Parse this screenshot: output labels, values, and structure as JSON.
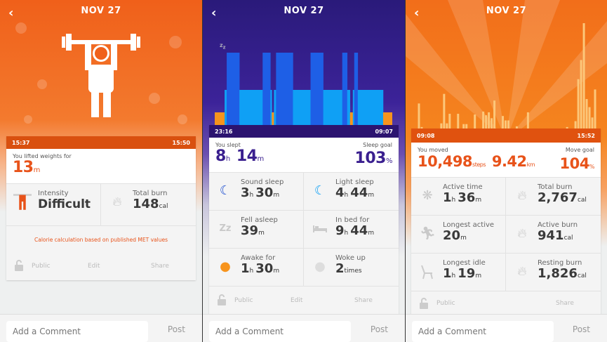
{
  "screens": [
    {
      "title": "NOV 27",
      "back_icon": "chevron-left-icon",
      "start_time": "15:37",
      "end_time": "15:50",
      "summary_label": "You lifted weights for",
      "summary_value": "13",
      "summary_unit": "m",
      "accent": "#e8531a",
      "header_color": "#d9500f",
      "stats": [
        {
          "icon": "weightlifter-icon",
          "label": "Intensity",
          "value": "Difficult"
        },
        {
          "icon": "flames-icon",
          "label": "Total burn",
          "value": "148",
          "unit": "cal"
        }
      ],
      "note": "Calorie calculation based on published MET values",
      "actions": {
        "public": "Public",
        "edit": "Edit",
        "share": "Share"
      },
      "comment_placeholder": "Add a Comment",
      "post": "Post"
    },
    {
      "title": "NOV 27",
      "back_icon": "chevron-left-icon",
      "start_time": "23:16",
      "end_time": "09:07",
      "summary_label": "You slept",
      "summary_h": "8",
      "summary_m": "14",
      "goal_label": "Sleep goal",
      "goal_value": "103",
      "goal_unit": "%",
      "accent": "#3a1f8f",
      "header_color": "#2c1470",
      "stats": [
        {
          "icon": "moon-dark-icon",
          "label": "Sound sleep",
          "h": "3",
          "m": "30"
        },
        {
          "icon": "moon-light-icon",
          "label": "Light sleep",
          "h": "4",
          "m": "44"
        },
        {
          "icon": "zzz-icon",
          "label": "Fell asleep",
          "m": "39"
        },
        {
          "icon": "bed-icon",
          "label": "In bed for",
          "h": "9",
          "m": "44"
        },
        {
          "icon": "neutral-face-orange-icon",
          "label": "Awake for",
          "h": "1",
          "m": "30"
        },
        {
          "icon": "neutral-face-gray-icon",
          "label": "Woke up",
          "value": "2",
          "unit": "times"
        }
      ],
      "actions": {
        "public": "Public",
        "edit": "Edit",
        "share": "Share"
      },
      "comment_placeholder": "Add a Comment",
      "post": "Post",
      "sleep_chart": {
        "colors": {
          "awake": "#f7941d",
          "light": "#0fa0f5",
          "sound": "#1e5fe6"
        },
        "segments": [
          [
            "awake",
            14
          ],
          [
            "light",
            3
          ],
          [
            "sound",
            18
          ],
          [
            "light",
            33
          ],
          [
            "sound",
            11
          ],
          [
            "light",
            2
          ],
          [
            "awake",
            3
          ],
          [
            "light",
            3
          ],
          [
            "sound",
            24
          ],
          [
            "light",
            25
          ],
          [
            "sound",
            18
          ],
          [
            "light",
            27
          ],
          [
            "sound",
            7
          ],
          [
            "light",
            4
          ],
          [
            "awake",
            4
          ],
          [
            "light",
            2
          ],
          [
            "sound",
            5
          ],
          [
            "light",
            36
          ],
          [
            "awake",
            13
          ]
        ]
      }
    },
    {
      "title": "NOV 27",
      "back_icon": "chevron-left-icon",
      "start_time": "09:08",
      "end_time": "15:52",
      "summary_label": "You moved",
      "steps": "10,498",
      "steps_unit": "steps",
      "distance": "9.42",
      "distance_unit": "km",
      "goal_label": "Move goal",
      "goal_value": "104",
      "goal_unit": "%",
      "accent": "#e8531a",
      "header_color": "#e0520f",
      "stats": [
        {
          "icon": "active-burst-icon",
          "label": "Active time",
          "h": "1",
          "m": "36"
        },
        {
          "icon": "flames-icon",
          "label": "Total burn",
          "value": "2,767",
          "unit": "cal"
        },
        {
          "icon": "runner-icon",
          "label": "Longest active",
          "m": "20"
        },
        {
          "icon": "flame-icon",
          "label": "Active burn",
          "value": "941",
          "unit": "cal"
        },
        {
          "icon": "chair-icon",
          "label": "Longest idle",
          "h": "1",
          "m": "19"
        },
        {
          "icon": "flame-icon",
          "label": "Resting burn",
          "value": "1,826",
          "unit": "cal"
        }
      ],
      "actions": {
        "public": "Public",
        "share": "Share"
      },
      "comment_placeholder": "Add a Comment",
      "post": "Post",
      "step_chart": {
        "color": "#fcc77a",
        "bars": [
          34,
          2,
          0,
          0,
          0,
          0,
          0,
          0,
          7,
          47,
          7,
          20,
          0,
          0,
          20,
          0,
          6,
          6,
          0,
          0,
          19,
          0,
          0,
          23,
          18,
          22,
          14,
          38,
          0,
          0,
          17,
          11,
          11,
          0,
          0,
          3,
          0,
          0,
          0,
          22,
          0,
          0,
          0,
          0,
          0,
          0,
          0,
          0,
          0,
          0,
          0,
          0,
          0,
          2,
          0,
          0,
          10,
          67,
          93,
          143,
          40,
          29,
          15,
          53
        ]
      }
    }
  ]
}
